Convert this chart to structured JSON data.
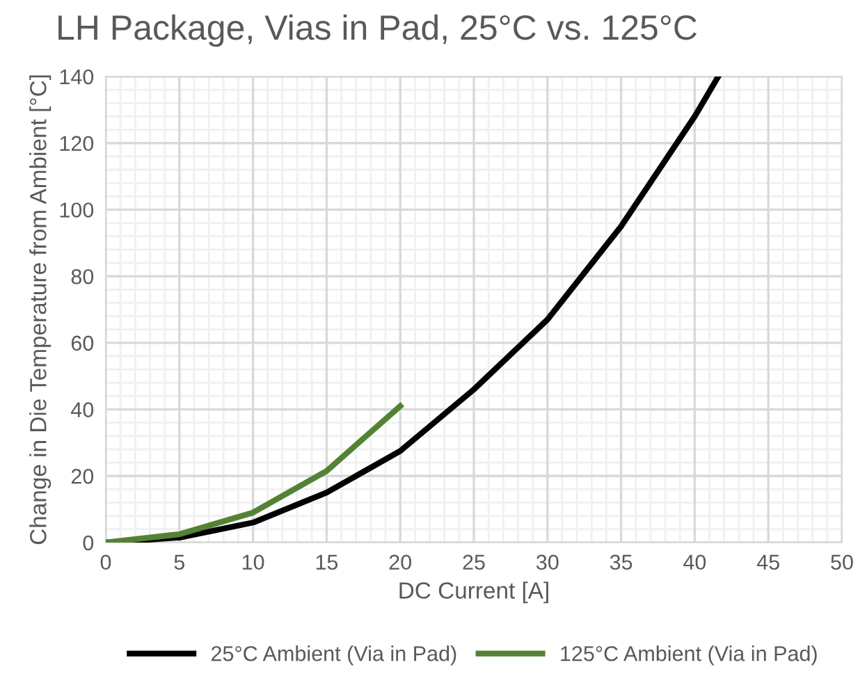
{
  "chart_data": {
    "type": "line",
    "title": "LH Package, Vias in Pad, 25°C vs. 125°C",
    "xlabel": "DC Current [A]",
    "ylabel": "Change in Die Temperature from Ambient [°C]",
    "series": [
      {
        "name": "25°C Ambient (Via in Pad)",
        "color": "#000000",
        "x": [
          0,
          5,
          10,
          15,
          20,
          25,
          30,
          35,
          40,
          41.6
        ],
        "values": [
          0,
          1.5,
          6,
          15,
          27.5,
          46,
          67,
          95,
          128,
          140
        ]
      },
      {
        "name": "125°C Ambient (Via in Pad)",
        "color": "#548235",
        "x": [
          0,
          5,
          10,
          15,
          20
        ],
        "values": [
          0,
          2.5,
          9,
          21.5,
          41
        ]
      }
    ],
    "xlim": [
      0,
      50
    ],
    "xticks": [
      0,
      5,
      10,
      15,
      20,
      25,
      30,
      35,
      40,
      45,
      50
    ],
    "ylim": [
      0,
      140
    ],
    "yticks": [
      0,
      20,
      40,
      60,
      80,
      100,
      120,
      140
    ],
    "grid": true,
    "legend": "bottom",
    "marker": "none",
    "line_style": "solid"
  }
}
